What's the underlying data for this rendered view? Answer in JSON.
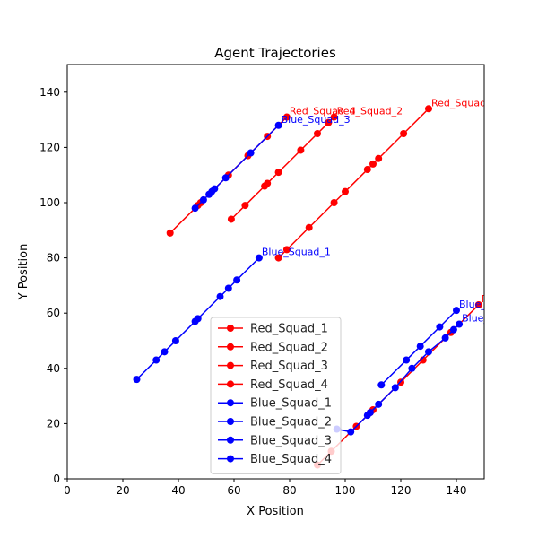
{
  "chart_data": {
    "type": "line",
    "title": "Agent Trajectories",
    "xlabel": "X Position",
    "ylabel": "Y Position",
    "xlim": [
      0,
      150
    ],
    "ylim": [
      0,
      150
    ],
    "xticks": [
      0,
      20,
      40,
      60,
      80,
      100,
      120,
      140
    ],
    "yticks": [
      0,
      20,
      40,
      60,
      80,
      100,
      120,
      140
    ],
    "grid": false,
    "legend": "lower-center",
    "colors": {
      "red": "#ff0000",
      "blue": "#0000ff"
    },
    "series": [
      {
        "name": "Red_Squad_1",
        "color": "#ff0000",
        "x": [
          76,
          79,
          87,
          96,
          100,
          108,
          110,
          112,
          121,
          130
        ],
        "y": [
          80,
          83,
          91,
          100,
          104,
          112,
          114,
          116,
          125,
          134
        ]
      },
      {
        "name": "Red_Squad_2",
        "color": "#ff0000",
        "x": [
          59,
          64,
          71,
          72,
          76,
          84,
          90,
          94,
          96
        ],
        "y": [
          94,
          99,
          106,
          107,
          111,
          119,
          125,
          129,
          131
        ]
      },
      {
        "name": "Red_Squad_3",
        "color": "#ff0000",
        "x": [
          90,
          95,
          104,
          109,
          110,
          120,
          128,
          138,
          148
        ],
        "y": [
          5,
          10,
          19,
          24,
          25,
          35,
          43,
          53,
          63
        ]
      },
      {
        "name": "Red_Squad_4",
        "color": "#ff0000",
        "x": [
          37,
          47,
          48,
          58,
          65,
          72,
          79
        ],
        "y": [
          89,
          99,
          100,
          110,
          117,
          124,
          131
        ]
      },
      {
        "name": "Blue_Squad_1",
        "color": "#0000ff",
        "x": [
          25,
          32,
          35,
          39,
          46,
          47,
          55,
          58,
          61,
          69
        ],
        "y": [
          36,
          43,
          46,
          50,
          57,
          58,
          66,
          69,
          72,
          80
        ]
      },
      {
        "name": "Blue_Squad_2",
        "color": "#0000ff",
        "x": [
          97,
          102,
          108,
          109,
          112,
          118,
          124,
          130,
          136,
          139,
          141
        ],
        "y": [
          18,
          17,
          23,
          24,
          27,
          33,
          40,
          46,
          51,
          54,
          56
        ]
      },
      {
        "name": "Blue_Squad_3",
        "color": "#0000ff",
        "x": [
          46,
          49,
          51,
          52,
          53,
          57,
          66,
          76
        ],
        "y": [
          98,
          101,
          103,
          104,
          105,
          109,
          118,
          128
        ]
      },
      {
        "name": "Blue_Squad_4",
        "color": "#0000ff",
        "x": [
          113,
          122,
          127,
          134,
          140
        ],
        "y": [
          34,
          43,
          48,
          55,
          61
        ]
      }
    ]
  }
}
